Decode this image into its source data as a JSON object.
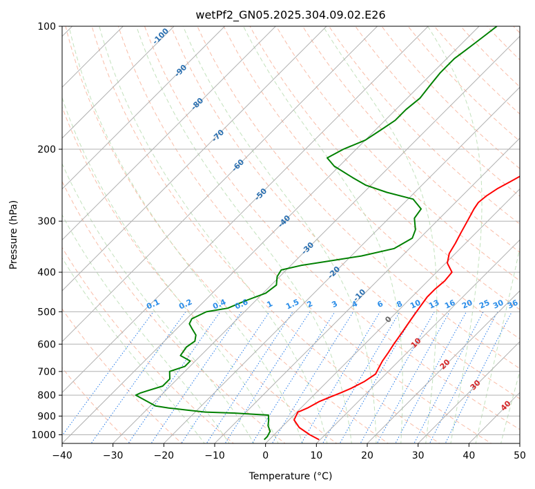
{
  "chart_data": {
    "type": "line",
    "title": "wetPf2_GN05.2025.304.09.02.E26",
    "xlabel": "Temperature (°C)",
    "ylabel": "Pressure (hPa)",
    "xlim": [
      -40,
      50
    ],
    "ylim": [
      1050,
      100
    ],
    "y_scale": "log",
    "grid": true,
    "x_ticks": [
      -40,
      -30,
      -20,
      -10,
      0,
      10,
      20,
      30,
      40,
      50
    ],
    "x_tick_labels": [
      "−40",
      "−30",
      "−20",
      "−10",
      "0",
      "10",
      "20",
      "30",
      "40",
      "50"
    ],
    "y_ticks": [
      1000,
      900,
      800,
      700,
      600,
      500,
      400,
      300,
      200,
      100
    ],
    "y_tick_labels": [
      "1000",
      "900",
      "800",
      "700",
      "600",
      "500",
      "400",
      "300",
      "200",
      "100"
    ],
    "series": [
      {
        "color": "#ff0000",
        "pressure": [
          1028,
          1000,
          960,
          920,
          880,
          875,
          860,
          830,
          810,
          790,
          770,
          740,
          710,
          690,
          660,
          630,
          600,
          560,
          520,
          490,
          460,
          440,
          420,
          400,
          380,
          360,
          340,
          320,
          300,
          280,
          270,
          260,
          250,
          240,
          225,
          215,
          200,
          185,
          175,
          165,
          155,
          145,
          135,
          125,
          115,
          105,
          100
        ],
        "temperature": [
          9.8,
          7.0,
          3.5,
          1.0,
          0.2,
          0.5,
          1.3,
          2.3,
          3.5,
          4.8,
          6.0,
          7.3,
          8.0,
          7.5,
          6.8,
          6.3,
          5.7,
          5.0,
          4.2,
          3.6,
          3.0,
          3.0,
          3.3,
          3.0,
          0.3,
          -1.2,
          -2.0,
          -3.0,
          -4.0,
          -5.1,
          -5.5,
          -5.2,
          -4.5,
          -3.3,
          -1.5,
          -1.0,
          -2.0,
          -3.0,
          -3.8,
          -4.3,
          -4.5,
          -4.4,
          -4.0,
          -3.2,
          -2.5,
          -2.0,
          -2.0
        ]
      },
      {
        "color": "#008000",
        "pressure": [
          1028,
          1010,
          980,
          950,
          920,
          900,
          895,
          885,
          880,
          870,
          860,
          850,
          800,
          790,
          780,
          760,
          730,
          700,
          680,
          660,
          640,
          610,
          590,
          570,
          550,
          535,
          520,
          500,
          490,
          470,
          450,
          430,
          410,
          395,
          385,
          375,
          365,
          350,
          330,
          315,
          295,
          280,
          265,
          255,
          245,
          235,
          220,
          210,
          200,
          190,
          180,
          170,
          160,
          150,
          140,
          130,
          125,
          120,
          115,
          110,
          105,
          100
        ],
        "temperature": [
          -1.0,
          -1.0,
          -1.5,
          -3.0,
          -4.0,
          -4.8,
          -5.0,
          -12.0,
          -18.0,
          -22.0,
          -26.0,
          -29.0,
          -35.0,
          -34.5,
          -33.5,
          -31.5,
          -31.5,
          -33.0,
          -31.0,
          -31.0,
          -34.0,
          -34.5,
          -34.0,
          -35.0,
          -37.0,
          -38.5,
          -39.0,
          -37.5,
          -34.0,
          -32.0,
          -29.5,
          -29.0,
          -30.5,
          -31.0,
          -28.0,
          -23.0,
          -18.0,
          -13.0,
          -11.5,
          -12.5,
          -15.0,
          -15.5,
          -19.0,
          -25.5,
          -31.0,
          -35.0,
          -41.0,
          -44.0,
          -42.5,
          -40.0,
          -39.0,
          -38.0,
          -38.0,
          -37.5,
          -38.0,
          -38.5,
          -38.5,
          -38.5,
          -38.0,
          -37.5,
          -37.0,
          -36.5
        ]
      }
    ],
    "dry_adiabat_labels": [
      "-100",
      "-90",
      "-80",
      "-70",
      "-60",
      "-50",
      "-40",
      "-30",
      "-20",
      "-10"
    ],
    "mixing_ratio_labels": [
      "0.1",
      "0.2",
      "0.4",
      "0.6",
      "1",
      "1.5",
      "2",
      "3",
      "4",
      "6",
      "8",
      "10",
      "13",
      "16",
      "20",
      "25",
      "30",
      "36"
    ],
    "moist_adiabat_labels": [
      "0",
      "10",
      "20",
      "30",
      "40"
    ]
  }
}
